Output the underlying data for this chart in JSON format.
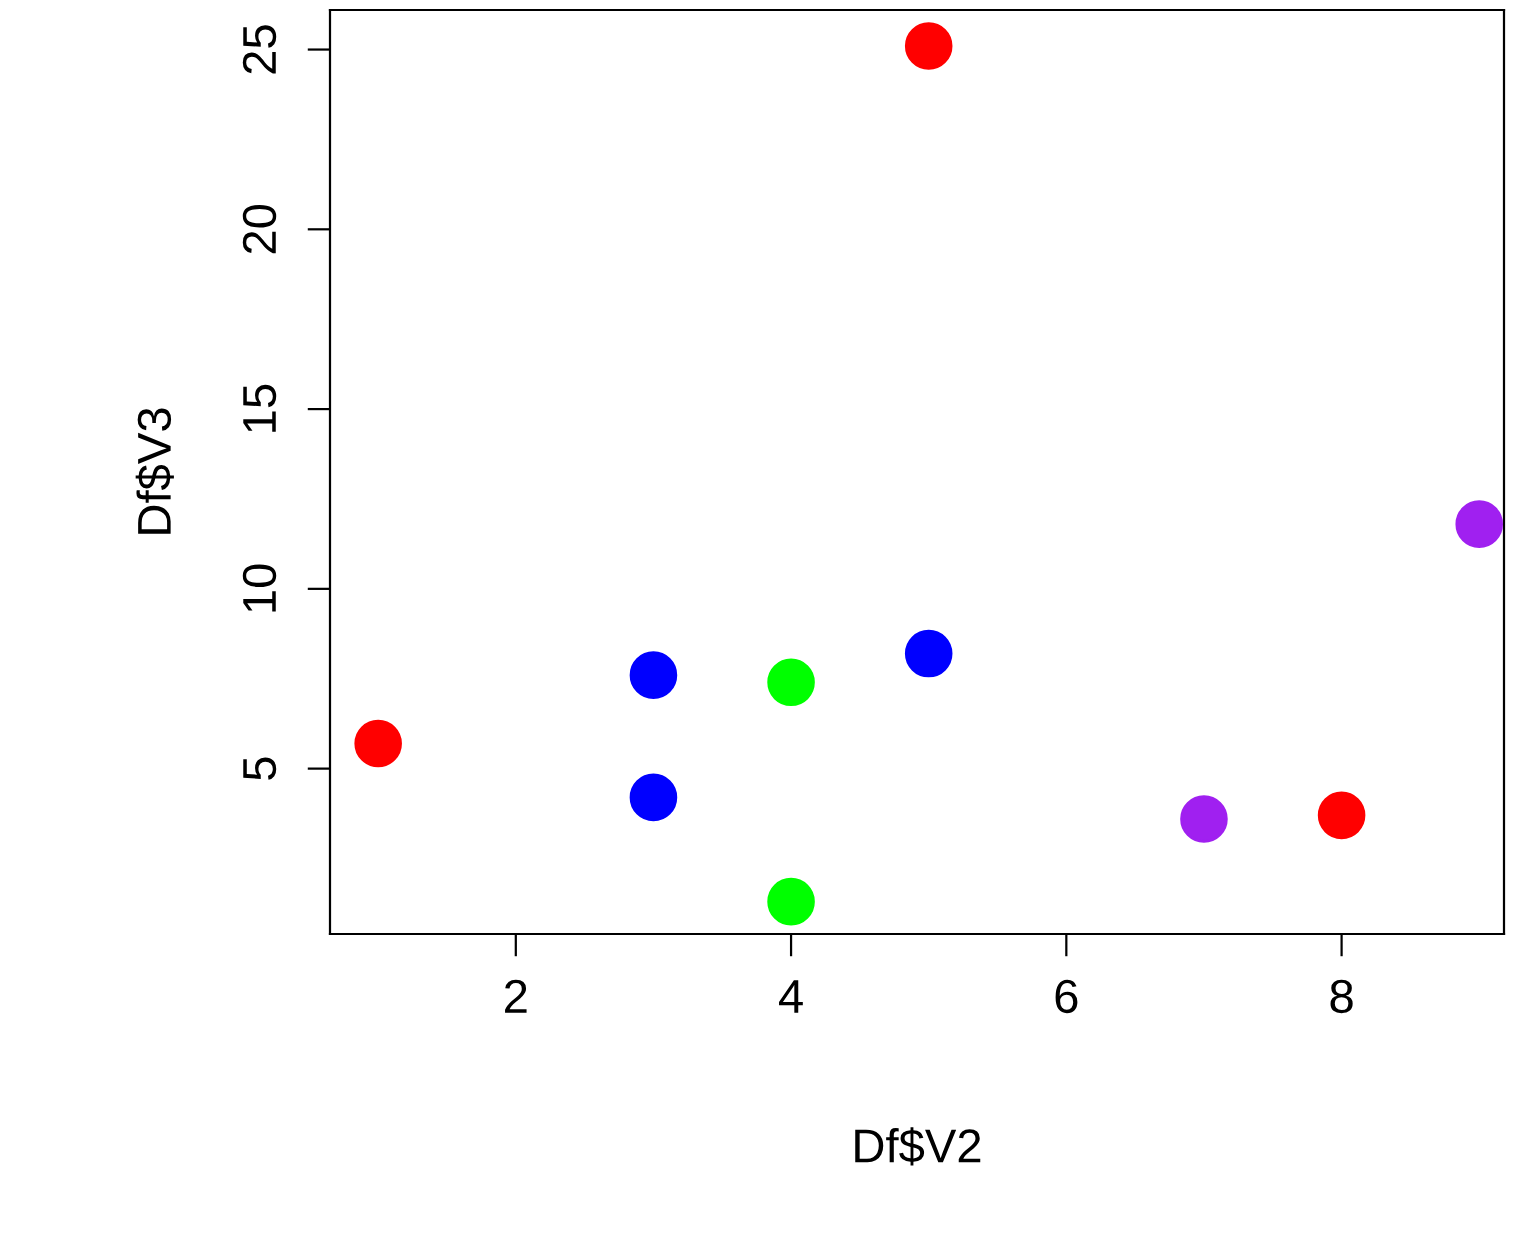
{
  "chart_data": {
    "type": "scatter",
    "xlabel": "Df$V2",
    "ylabel": "Df$V3",
    "x": [
      1,
      3,
      3,
      4,
      4,
      5,
      5,
      7,
      8,
      9
    ],
    "values": [
      5.7,
      7.6,
      4.2,
      7.4,
      1.3,
      8.2,
      25.1,
      3.6,
      3.7,
      11.8
    ],
    "colors": [
      "#ff0000",
      "#0000ff",
      "#0000ff",
      "#00ff00",
      "#00ff00",
      "#0000ff",
      "#ff0000",
      "#a020f0",
      "#ff0000",
      "#a020f0"
    ],
    "xlim": [
      0.65,
      9.18
    ],
    "ylim": [
      0.4,
      26.1
    ],
    "xticks": [
      2,
      4,
      6,
      8
    ],
    "yticks": [
      5,
      10,
      15,
      20,
      25
    ],
    "marker": "circle",
    "grid": false,
    "legend": false
  }
}
